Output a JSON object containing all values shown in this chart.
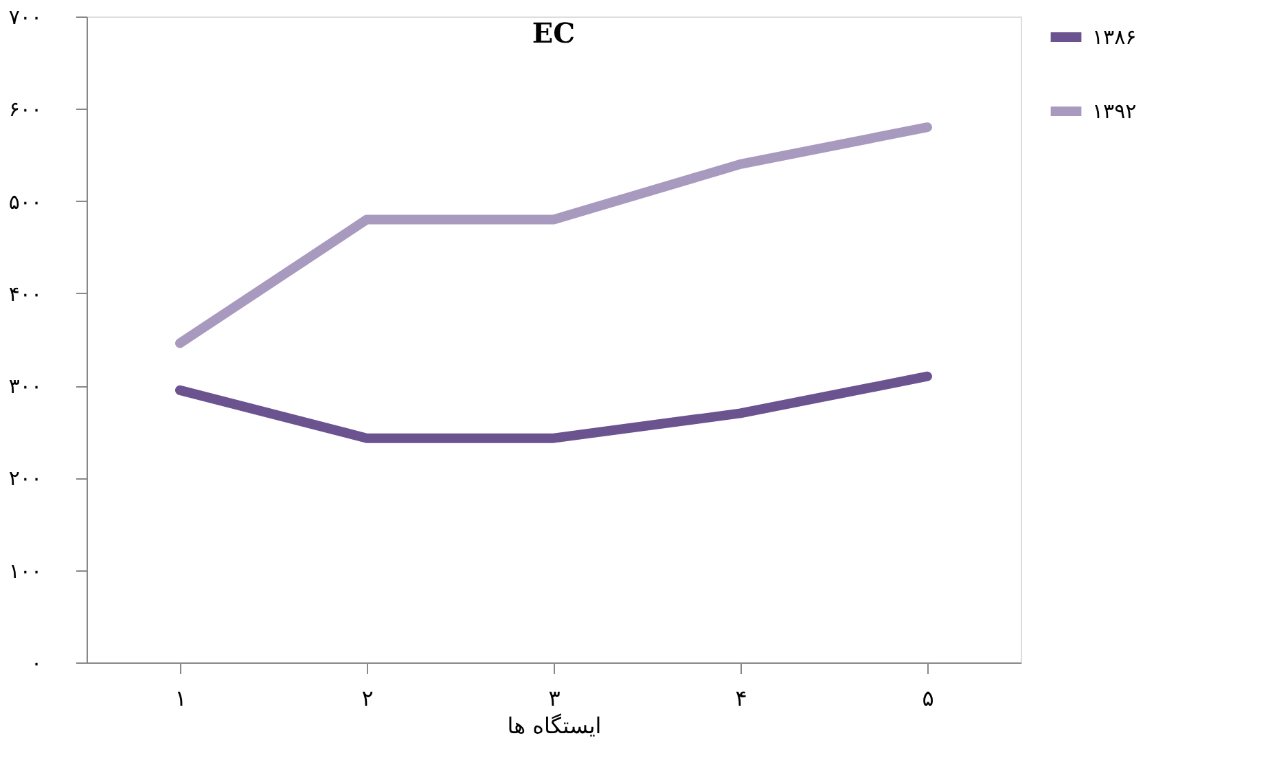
{
  "chart_data": {
    "type": "line",
    "title": "EC",
    "xlabel": "ایستگاه ها",
    "categories": [
      "۱",
      "۲",
      "۳",
      "۴",
      "۵"
    ],
    "series": [
      {
        "name": "۱۳۸۶",
        "color": "#6b5390",
        "values": [
          295,
          243,
          243,
          270,
          310
        ]
      },
      {
        "name": "۱۳۹۲",
        "color": "#a899bf",
        "values": [
          346,
          480,
          480,
          540,
          580
        ]
      }
    ],
    "ylim": [
      0,
      700
    ],
    "yticks": [
      {
        "value": 0,
        "label": "۰"
      },
      {
        "value": 100,
        "label": "۱۰۰"
      },
      {
        "value": 200,
        "label": "۲۰۰"
      },
      {
        "value": 300,
        "label": "۳۰۰"
      },
      {
        "value": 400,
        "label": "۴۰۰"
      },
      {
        "value": 500,
        "label": "۵۰۰"
      },
      {
        "value": 600,
        "label": "۶۰۰"
      },
      {
        "value": 700,
        "label": "۷۰۰"
      }
    ],
    "grid": false,
    "legend": "right",
    "line_style": "solid"
  }
}
